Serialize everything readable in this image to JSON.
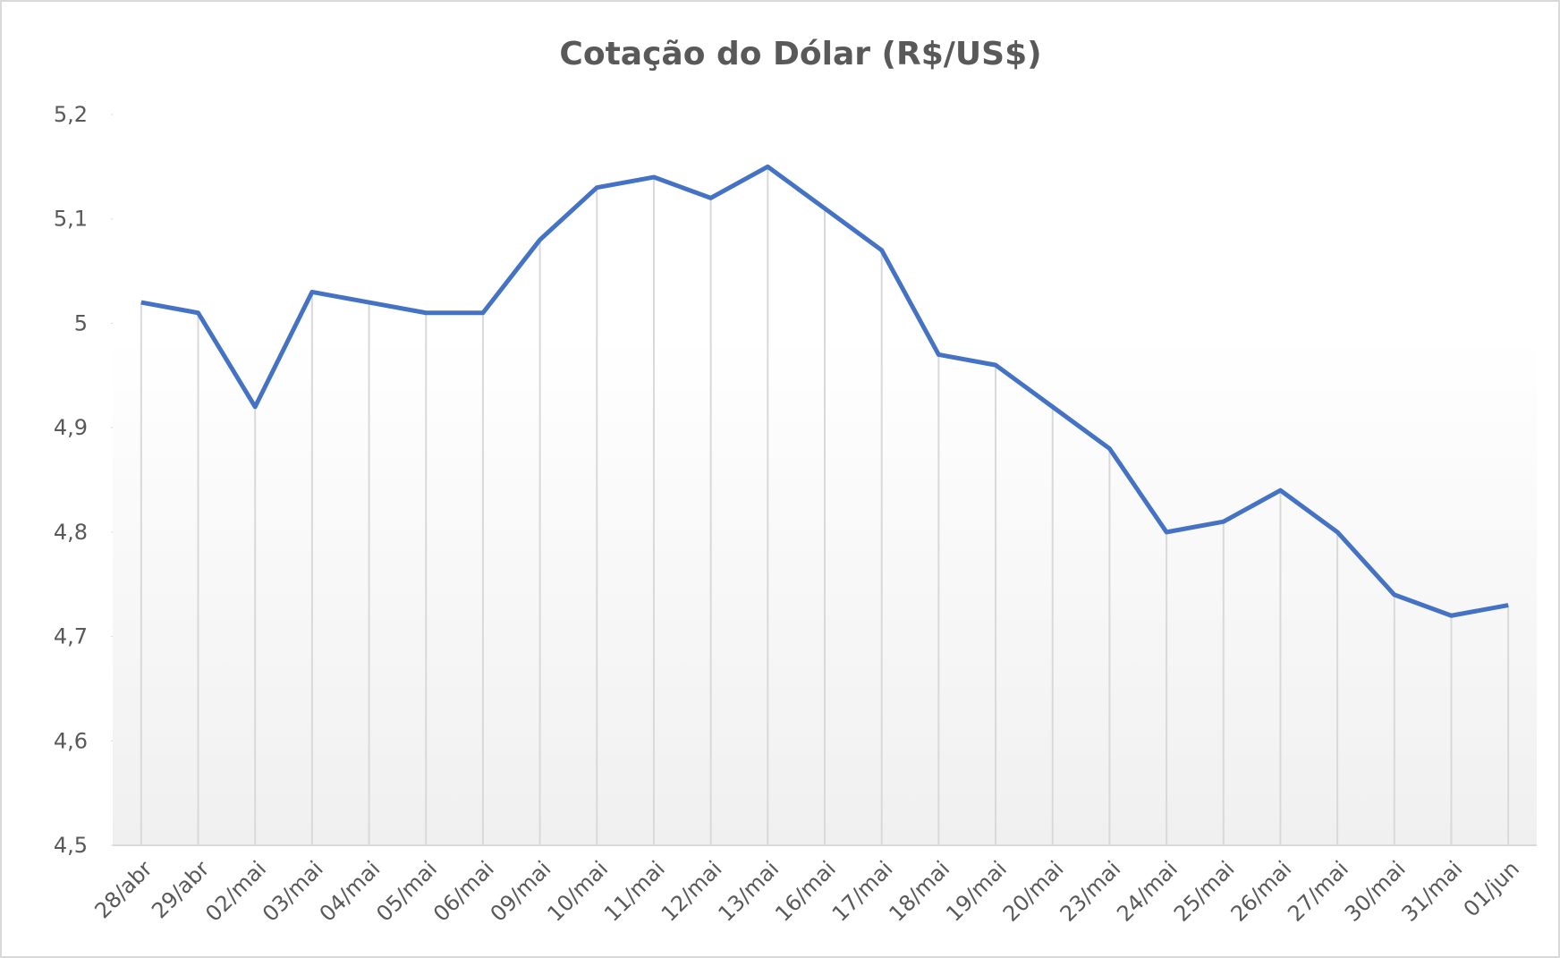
{
  "chart_data": {
    "type": "line",
    "title": "Cotação do Dólar (R$/US$)",
    "categories": [
      "28/abr",
      "29/abr",
      "02/mai",
      "03/mai",
      "04/mai",
      "05/mai",
      "06/mai",
      "09/mai",
      "10/mai",
      "11/mai",
      "12/mai",
      "13/mai",
      "16/mai",
      "17/mai",
      "18/mai",
      "19/mai",
      "20/mai",
      "23/mai",
      "24/mai",
      "25/mai",
      "26/mai",
      "27/mai",
      "30/mai",
      "31/mai",
      "01/jun"
    ],
    "series": [
      {
        "name": "Cotação",
        "color": "#4472c4",
        "values": [
          5.02,
          5.01,
          4.92,
          5.03,
          5.02,
          5.01,
          5.01,
          5.08,
          5.13,
          5.14,
          5.12,
          5.15,
          5.11,
          5.07,
          4.97,
          4.96,
          4.92,
          4.88,
          4.8,
          4.81,
          4.84,
          4.8,
          4.74,
          4.72,
          4.73
        ]
      }
    ],
    "ylim": [
      4.5,
      5.2
    ],
    "yticks": [
      {
        "value": 4.5,
        "label": "4,5"
      },
      {
        "value": 4.6,
        "label": "4,6"
      },
      {
        "value": 4.7,
        "label": "4,7"
      },
      {
        "value": 4.8,
        "label": "4,8"
      },
      {
        "value": 4.9,
        "label": "4,9"
      },
      5,
      {
        "value": 5.1,
        "label": "5,1"
      },
      {
        "value": 5.2,
        "label": "5,2"
      }
    ],
    "drop_lines": true
  }
}
